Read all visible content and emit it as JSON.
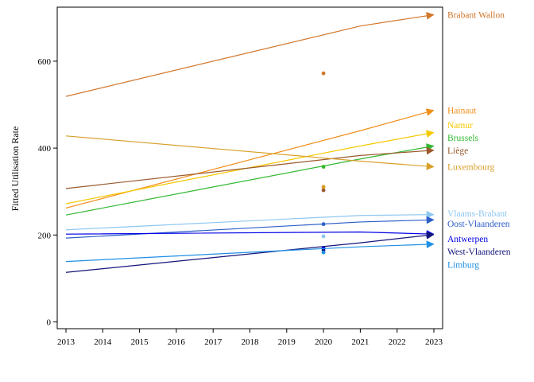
{
  "chart_data": {
    "type": "line",
    "xlabel": "",
    "ylabel": "Fitted Utilisation Rate",
    "xlim": [
      2013,
      2023
    ],
    "ylim": [
      -20,
      730
    ],
    "x_ticks": [
      "2013",
      "2014",
      "2015",
      "2016",
      "2017",
      "2018",
      "2019",
      "2020",
      "2021",
      "2022",
      "2023"
    ],
    "y_ticks": [
      "0",
      "200",
      "400",
      "600"
    ],
    "grid": false,
    "legend": "none (direct labels at line ends, right)",
    "x": [
      2013,
      2021,
      2023
    ],
    "series": [
      {
        "name": "Brabant Wallon",
        "color": "#D2772B",
        "values": [
          519,
          681,
          707
        ],
        "point_2020": 572,
        "label_y": 707
      },
      {
        "name": "Hainaut",
        "color": "#F28E1C",
        "values": [
          262,
          440,
          487
        ],
        "point_2020": 310,
        "label_y": 487
      },
      {
        "name": "Namur",
        "color": "#F5C800",
        "values": [
          272,
          405,
          436
        ],
        "point_2020": 357,
        "label_y": 453
      },
      {
        "name": "Brussels",
        "color": "#32B832",
        "values": [
          246,
          375,
          405
        ],
        "point_2020": 357,
        "label_y": 424
      },
      {
        "name": "Liège",
        "color": "#9A5A2E",
        "values": [
          307,
          383,
          395
        ],
        "point_2020": 303,
        "label_y": 395
      },
      {
        "name": "Luxembourg",
        "color": "#D8A02A",
        "values": [
          428,
          370,
          357
        ],
        "point_2020": 311,
        "label_y": 357
      },
      {
        "name": "Vlaams-Brabant",
        "color": "#8EC7F0",
        "values": [
          212,
          245,
          247
        ],
        "point_2020": 197,
        "label_y": 250
      },
      {
        "name": "Oost-Vlaanderen",
        "color": "#2E5EC8",
        "values": [
          193,
          230,
          235
        ],
        "point_2020": 225,
        "label_y": 226
      },
      {
        "name": "Antwerpen",
        "color": "#0000E6",
        "values": [
          202,
          207,
          202
        ],
        "point_2020": 170,
        "label_y": 191
      },
      {
        "name": "West-Vlaanderen",
        "color": "#14147A",
        "values": [
          114,
          182,
          201
        ],
        "point_2020": 165,
        "label_y": 162
      },
      {
        "name": "Limburg",
        "color": "#1E90E6",
        "values": [
          139,
          173,
          179
        ],
        "point_2020": 160,
        "label_y": 132
      }
    ]
  }
}
